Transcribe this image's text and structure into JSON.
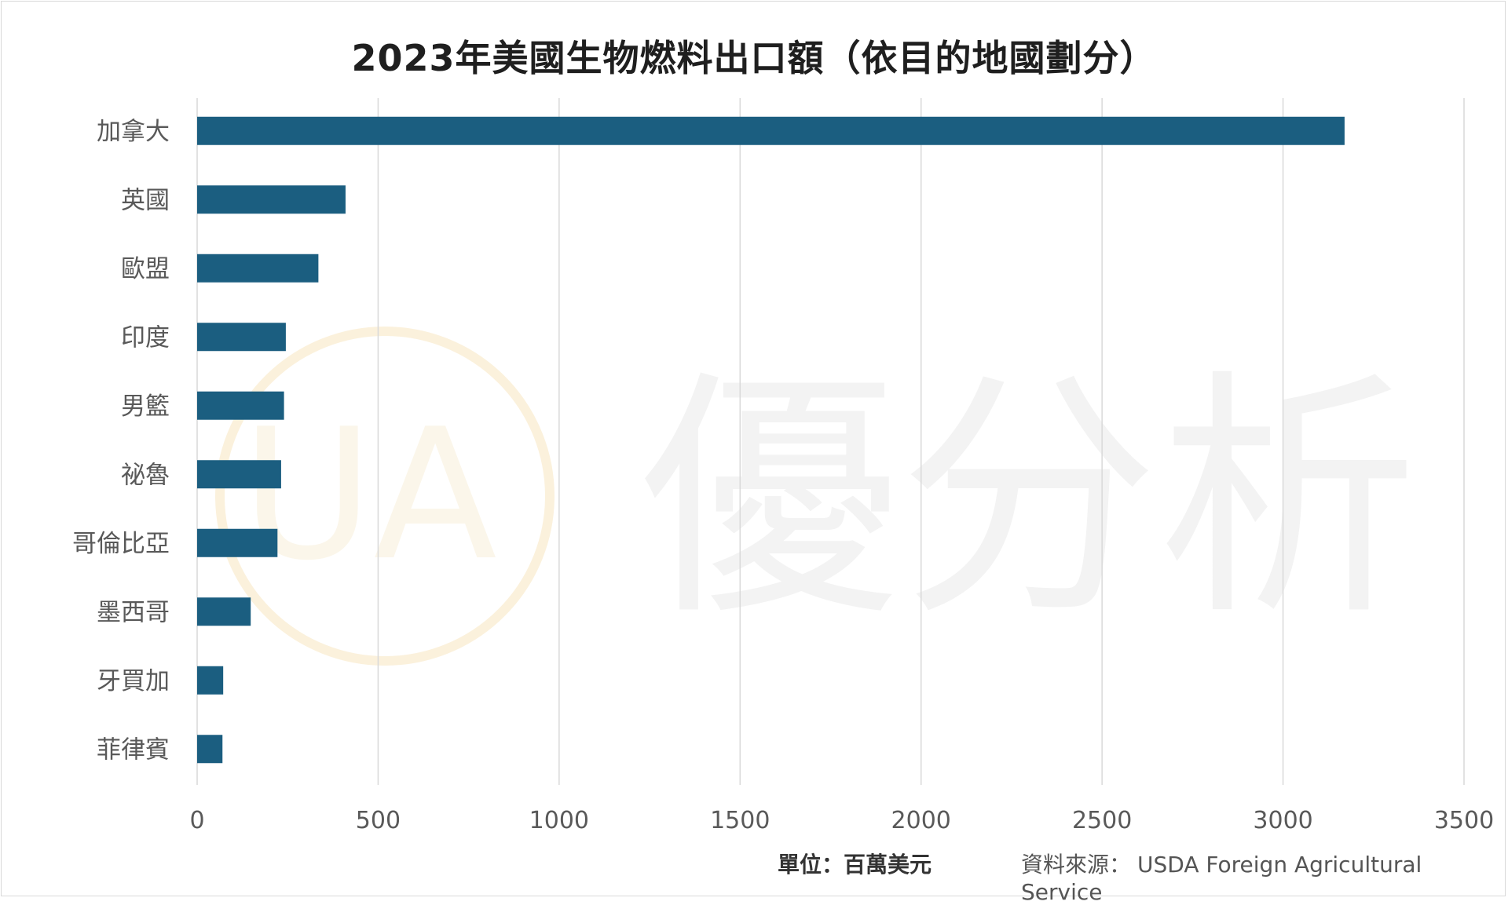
{
  "chart_data": {
    "type": "bar",
    "orientation": "horizontal",
    "title": "2023年美國生物燃料出口額（依目的地國劃分）",
    "categories": [
      "加拿大",
      "英國",
      "歐盟",
      "印度",
      "男籃",
      "祕魯",
      "哥倫比亞",
      "墨西哥",
      "牙買加",
      "菲律賓"
    ],
    "values": [
      3170,
      410,
      335,
      245,
      240,
      232,
      222,
      148,
      72,
      70
    ],
    "xlim": [
      0,
      3500
    ],
    "xticks": [
      "0",
      "500",
      "1000",
      "1500",
      "2000",
      "2500",
      "3000",
      "3500"
    ],
    "grid": true,
    "legend": "none",
    "bar_color": "#1b5e80"
  },
  "footer": {
    "unit": "單位：百萬美元",
    "source_label": "資料來源：",
    "source": "USDA Foreign Agricultural Service"
  },
  "watermark": {
    "text": "優分析",
    "logo_text": "UA"
  }
}
